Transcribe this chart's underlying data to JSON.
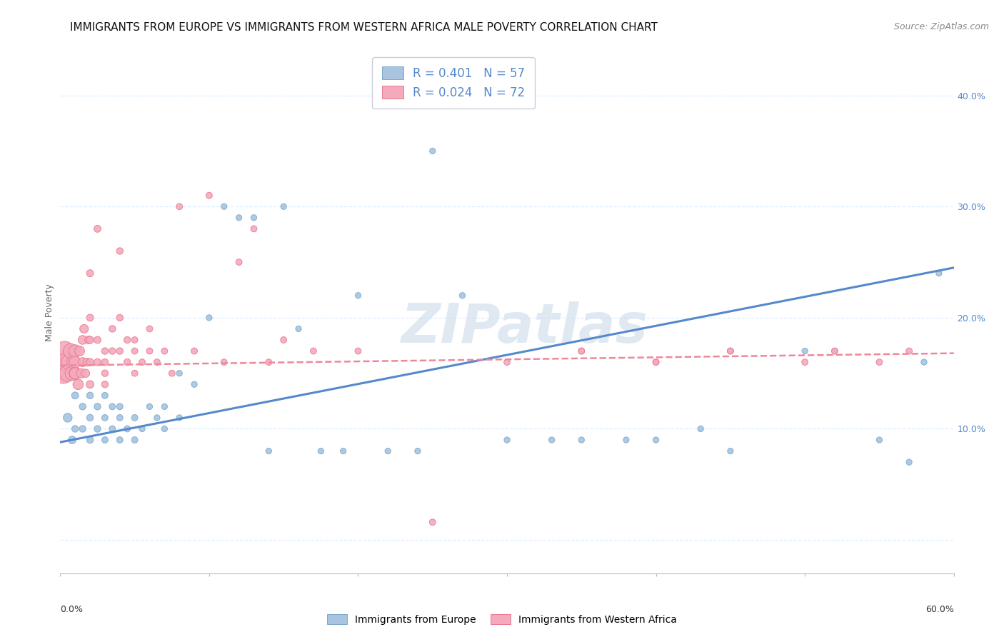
{
  "title": "IMMIGRANTS FROM EUROPE VS IMMIGRANTS FROM WESTERN AFRICA MALE POVERTY CORRELATION CHART",
  "source": "Source: ZipAtlas.com",
  "ylabel": "Male Poverty",
  "xlim": [
    0.0,
    0.6
  ],
  "ylim": [
    -0.03,
    0.44
  ],
  "blue_color": "#A8C4E0",
  "pink_color": "#F4AABB",
  "blue_edge_color": "#7AAACB",
  "pink_edge_color": "#E87A95",
  "blue_line_color": "#5588CC",
  "pink_line_color": "#EE8899",
  "legend_line1": "R = 0.401   N = 57",
  "legend_line2": "R = 0.024   N = 72",
  "legend_color": "#5588CC",
  "watermark": "ZIPatlas",
  "watermark_color": "#C8D8E8",
  "watermark_alpha": 0.55,
  "blue_trend_x": [
    0.0,
    0.6
  ],
  "blue_trend_y": [
    0.088,
    0.245
  ],
  "pink_trend_x": [
    0.0,
    0.6
  ],
  "pink_trend_y": [
    0.157,
    0.168
  ],
  "grid_color": "#DDEEFF",
  "grid_linestyle": "--",
  "axis_color": "#5588CC",
  "title_color": "#111111",
  "title_fontsize": 11,
  "source_fontsize": 9,
  "ylabel_fontsize": 9,
  "tick_fontsize": 9,
  "legend_fontsize": 12,
  "watermark_fontsize": 55,
  "blue_x": [
    0.005,
    0.008,
    0.01,
    0.01,
    0.015,
    0.015,
    0.02,
    0.02,
    0.02,
    0.025,
    0.025,
    0.03,
    0.03,
    0.03,
    0.035,
    0.035,
    0.04,
    0.04,
    0.04,
    0.045,
    0.05,
    0.05,
    0.055,
    0.06,
    0.065,
    0.07,
    0.07,
    0.08,
    0.08,
    0.09,
    0.1,
    0.11,
    0.12,
    0.13,
    0.14,
    0.15,
    0.16,
    0.175,
    0.19,
    0.2,
    0.22,
    0.24,
    0.25,
    0.27,
    0.3,
    0.33,
    0.35,
    0.38,
    0.4,
    0.43,
    0.45,
    0.5,
    0.52,
    0.55,
    0.57,
    0.58,
    0.59
  ],
  "blue_y": [
    0.11,
    0.09,
    0.13,
    0.1,
    0.12,
    0.1,
    0.11,
    0.09,
    0.13,
    0.12,
    0.1,
    0.11,
    0.09,
    0.13,
    0.12,
    0.1,
    0.11,
    0.09,
    0.12,
    0.1,
    0.11,
    0.09,
    0.1,
    0.12,
    0.11,
    0.12,
    0.1,
    0.15,
    0.11,
    0.14,
    0.2,
    0.3,
    0.29,
    0.29,
    0.08,
    0.3,
    0.19,
    0.08,
    0.08,
    0.22,
    0.08,
    0.08,
    0.35,
    0.22,
    0.09,
    0.09,
    0.09,
    0.09,
    0.09,
    0.1,
    0.08,
    0.17,
    0.17,
    0.09,
    0.07,
    0.16,
    0.24
  ],
  "blue_sz": [
    80,
    60,
    50,
    45,
    45,
    45,
    45,
    45,
    45,
    45,
    45,
    40,
    40,
    40,
    40,
    40,
    40,
    40,
    40,
    40,
    40,
    40,
    35,
    35,
    35,
    35,
    35,
    35,
    35,
    35,
    35,
    35,
    35,
    35,
    35,
    35,
    35,
    35,
    35,
    35,
    35,
    35,
    35,
    35,
    35,
    35,
    35,
    35,
    35,
    35,
    35,
    35,
    35,
    35,
    35,
    35,
    35
  ],
  "pink_x": [
    0.001,
    0.002,
    0.003,
    0.004,
    0.005,
    0.006,
    0.007,
    0.008,
    0.009,
    0.01,
    0.01,
    0.01,
    0.01,
    0.012,
    0.013,
    0.014,
    0.015,
    0.015,
    0.016,
    0.017,
    0.018,
    0.019,
    0.02,
    0.02,
    0.02,
    0.02,
    0.02,
    0.025,
    0.025,
    0.025,
    0.03,
    0.03,
    0.03,
    0.03,
    0.035,
    0.035,
    0.04,
    0.04,
    0.04,
    0.045,
    0.045,
    0.05,
    0.05,
    0.05,
    0.055,
    0.06,
    0.06,
    0.065,
    0.07,
    0.075,
    0.08,
    0.09,
    0.1,
    0.11,
    0.12,
    0.13,
    0.14,
    0.15,
    0.17,
    0.2,
    0.25,
    0.3,
    0.35,
    0.4,
    0.45,
    0.5,
    0.52,
    0.55,
    0.57,
    0.35,
    0.4,
    0.45
  ],
  "pink_y": [
    0.16,
    0.15,
    0.17,
    0.16,
    0.15,
    0.16,
    0.17,
    0.15,
    0.16,
    0.17,
    0.15,
    0.16,
    0.15,
    0.14,
    0.17,
    0.15,
    0.16,
    0.18,
    0.19,
    0.15,
    0.16,
    0.18,
    0.14,
    0.16,
    0.18,
    0.2,
    0.24,
    0.16,
    0.18,
    0.28,
    0.14,
    0.15,
    0.17,
    0.16,
    0.17,
    0.19,
    0.26,
    0.2,
    0.17,
    0.16,
    0.18,
    0.15,
    0.17,
    0.18,
    0.16,
    0.17,
    0.19,
    0.16,
    0.17,
    0.15,
    0.3,
    0.17,
    0.31,
    0.16,
    0.25,
    0.28,
    0.16,
    0.18,
    0.17,
    0.17,
    0.016,
    0.16,
    0.17,
    0.16,
    0.17,
    0.16,
    0.17,
    0.16,
    0.17,
    0.17,
    0.16,
    0.17
  ],
  "pink_sz": [
    500,
    420,
    380,
    320,
    280,
    250,
    220,
    200,
    180,
    160,
    150,
    140,
    130,
    110,
    100,
    90,
    85,
    80,
    75,
    70,
    65,
    60,
    60,
    55,
    55,
    50,
    50,
    50,
    50,
    50,
    45,
    45,
    45,
    45,
    45,
    45,
    45,
    45,
    45,
    45,
    45,
    40,
    40,
    40,
    40,
    40,
    40,
    40,
    40,
    40,
    40,
    40,
    40,
    40,
    40,
    40,
    40,
    40,
    40,
    40,
    40,
    40,
    40,
    40,
    40,
    40,
    40,
    40,
    40,
    40,
    40,
    40
  ]
}
